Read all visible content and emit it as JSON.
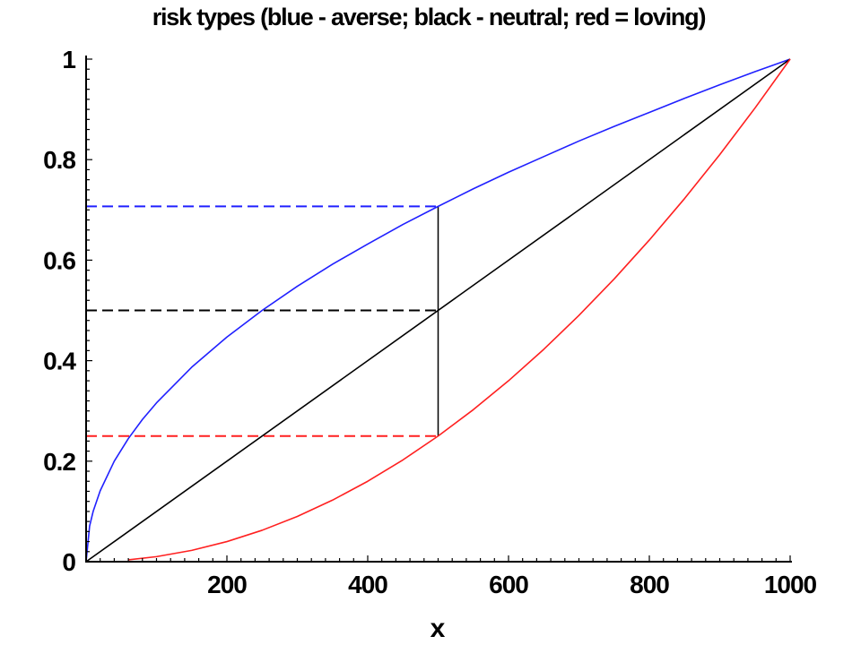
{
  "chart_data": {
    "type": "line",
    "title": "risk types (blue - averse; black - neutral; red = loving)",
    "xlabel": "x",
    "ylabel": "",
    "xlim": [
      0,
      1000
    ],
    "ylim": [
      0,
      1
    ],
    "x_ticks": [
      {
        "value": 200,
        "label": "200"
      },
      {
        "value": 400,
        "label": "400"
      },
      {
        "value": 600,
        "label": "600"
      },
      {
        "value": 800,
        "label": "800"
      },
      {
        "value": 1000,
        "label": "1000"
      }
    ],
    "y_ticks": [
      {
        "value": 0,
        "label": "0"
      },
      {
        "value": 0.2,
        "label": "0.2"
      },
      {
        "value": 0.4,
        "label": "0.4"
      },
      {
        "value": 0.6,
        "label": "0.6"
      },
      {
        "value": 0.8,
        "label": "0.8"
      },
      {
        "value": 1,
        "label": "1"
      }
    ],
    "grid": false,
    "legend": "none",
    "series": [
      {
        "color": "#2020ff",
        "x": [
          0,
          5,
          10,
          20,
          40,
          60,
          80,
          100,
          150,
          200,
          250,
          300,
          350,
          400,
          450,
          500,
          550,
          600,
          650,
          700,
          750,
          800,
          850,
          900,
          950,
          1000
        ],
        "y": [
          0,
          0.071,
          0.1,
          0.141,
          0.2,
          0.245,
          0.283,
          0.316,
          0.387,
          0.447,
          0.5,
          0.548,
          0.592,
          0.632,
          0.671,
          0.707,
          0.742,
          0.775,
          0.806,
          0.837,
          0.866,
          0.894,
          0.922,
          0.949,
          0.975,
          1
        ]
      },
      {
        "color": "#000000",
        "x": [
          0,
          1000
        ],
        "y": [
          0,
          1
        ]
      },
      {
        "color": "#ff2020",
        "x": [
          60,
          100,
          150,
          200,
          250,
          300,
          350,
          400,
          450,
          500,
          550,
          600,
          650,
          700,
          750,
          800,
          850,
          900,
          950,
          1000
        ],
        "y": [
          0.0036,
          0.01,
          0.0225,
          0.04,
          0.0625,
          0.09,
          0.1225,
          0.16,
          0.2025,
          0.25,
          0.3025,
          0.36,
          0.4225,
          0.49,
          0.5625,
          0.64,
          0.7225,
          0.81,
          0.9025,
          1
        ]
      }
    ],
    "reference_lines": [
      {
        "kind": "horizontal-dashed",
        "color": "#2020ff",
        "y": 0.707,
        "x_from": 0,
        "x_to": 500
      },
      {
        "kind": "horizontal-dashed",
        "color": "#000000",
        "y": 0.5,
        "x_from": 0,
        "x_to": 500
      },
      {
        "kind": "horizontal-dashed",
        "color": "#ff2020",
        "y": 0.25,
        "x_from": 0,
        "x_to": 500
      },
      {
        "kind": "vertical-solid",
        "color": "#000000",
        "x": 500,
        "y_from": 0.25,
        "y_to": 0.707
      }
    ]
  }
}
